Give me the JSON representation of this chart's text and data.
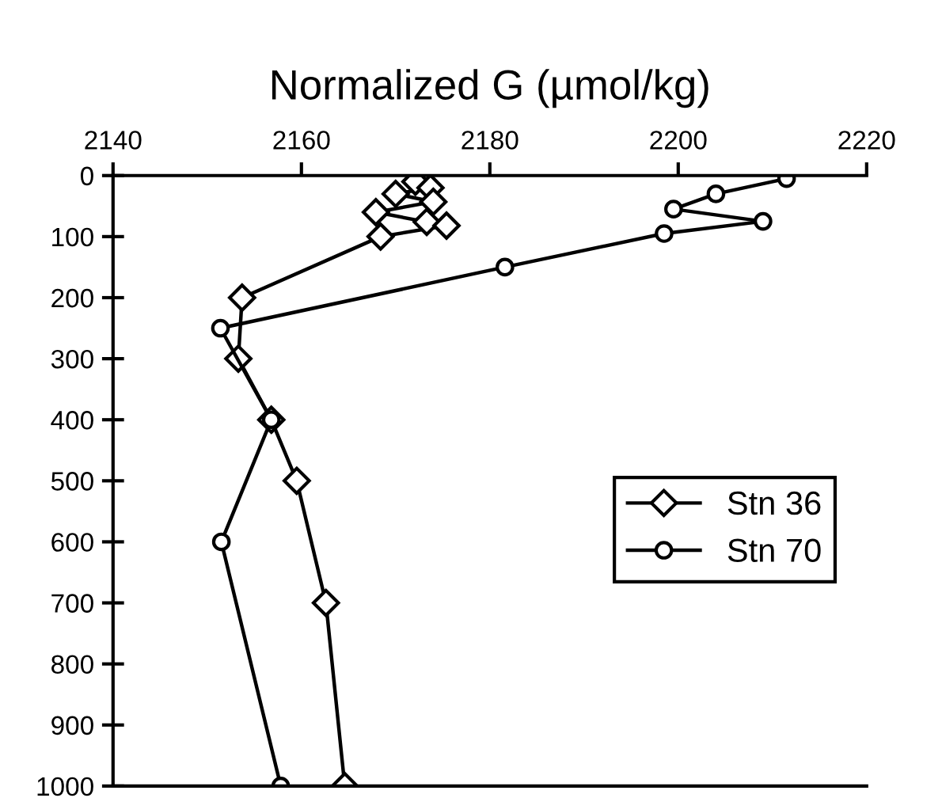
{
  "chart_data": {
    "type": "line",
    "xlabel": "Normalized G (µmol/kg)",
    "xlim": [
      2140,
      2220
    ],
    "xticks": [
      2140,
      2160,
      2180,
      2200,
      2220
    ],
    "ylim": [
      1000,
      0
    ],
    "yticks": [
      0,
      100,
      200,
      300,
      400,
      500,
      600,
      700,
      800,
      900,
      1000
    ],
    "grid": false,
    "legend": "right",
    "line_style": "solid",
    "series": [
      {
        "name": "Stn 36",
        "color": "#000000",
        "marker": "diamond",
        "x": [
          2172.1,
          2173.7,
          2170.0,
          2174.0,
          2167.9,
          2173.3,
          2175.4,
          2168.4,
          2153.7,
          2153.3,
          2156.8,
          2159.5,
          2162.6,
          2164.6
        ],
        "values": [
          10,
          20,
          30,
          43,
          60,
          76,
          82,
          100,
          200,
          300,
          400,
          500,
          700,
          1000
        ]
      },
      {
        "name": "Stn 70",
        "color": "#000000",
        "marker": "circle",
        "x": [
          2211.5,
          2204,
          2199.5,
          2209,
          2198.5,
          2181.6,
          2151.4,
          2156.8,
          2151.5,
          2157.8
        ],
        "values": [
          5,
          30,
          55,
          75,
          95,
          150,
          250,
          400,
          600,
          1000
        ]
      }
    ]
  }
}
